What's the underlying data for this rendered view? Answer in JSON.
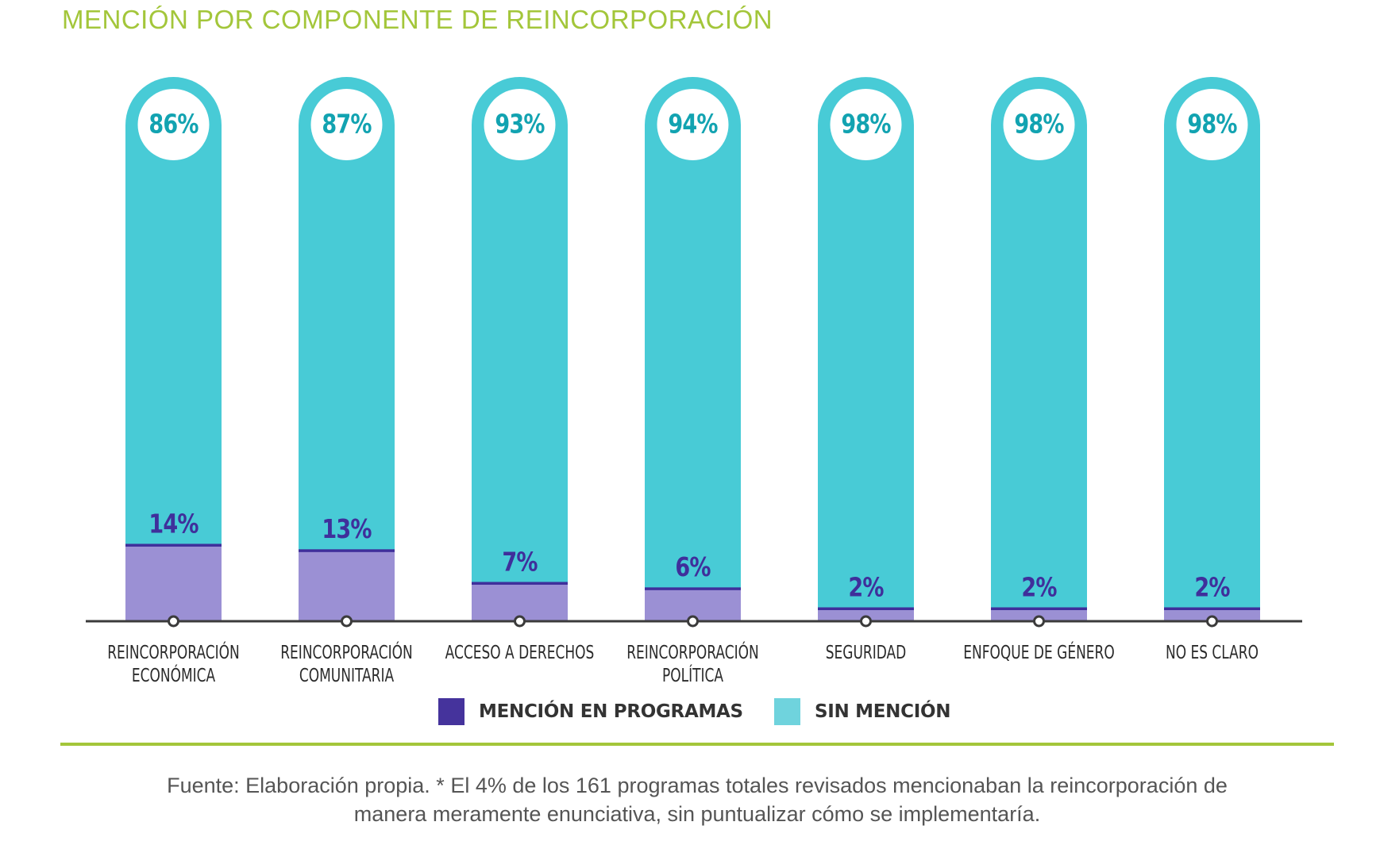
{
  "title": "MENCIÓN POR COMPONENTE DE REINCORPORACIÓN",
  "colors": {
    "mention_fill": "#9b90d4",
    "mention_line": "#3f2f9b",
    "mention_legend": "#45339c",
    "no_mention_fill": "#48cbd6",
    "no_mention_legend": "#6fd3dd",
    "top_label_text": "#12a3b1",
    "axis": "#3b3b3b",
    "title": "#a3c63a"
  },
  "legend": [
    {
      "key": "mention",
      "label": "MENCIÓN EN PROGRAMAS"
    },
    {
      "key": "no_mention",
      "label": "SIN MENCIÓN"
    }
  ],
  "footer": {
    "line1": "Fuente: Elaboración propia. * El 4% de los 161 programas totales revisados mencionaban la reincorporación de",
    "line2": "manera meramente enunciativa, sin puntualizar cómo se implementaría."
  },
  "chart_data": {
    "type": "bar",
    "stacked": true,
    "title": "MENCIÓN POR COMPONENTE DE REINCORPORACIÓN",
    "xlabel": "",
    "ylabel": "",
    "ylim": [
      0,
      100
    ],
    "unit": "%",
    "grid": false,
    "legend_position": "bottom-center",
    "categories": [
      [
        "REINCORPORACIÓN",
        "ECONÓMICA"
      ],
      [
        "REINCORPORACIÓN",
        "COMUNITARIA"
      ],
      [
        "ACCESO A DERECHOS"
      ],
      [
        "REINCORPORACIÓN",
        "POLÍTICA"
      ],
      [
        "SEGURIDAD"
      ],
      [
        "ENFOQUE DE GÉNERO"
      ],
      [
        "NO ES CLARO"
      ]
    ],
    "series": [
      {
        "name": "MENCIÓN EN PROGRAMAS",
        "values": [
          14,
          13,
          7,
          6,
          2,
          2,
          2
        ]
      },
      {
        "name": "SIN MENCIÓN",
        "values": [
          86,
          87,
          93,
          94,
          98,
          98,
          98
        ]
      }
    ],
    "data_labels": {
      "mention": [
        "14%",
        "13%",
        "7%",
        "6%",
        "2%",
        "2%",
        "2%"
      ],
      "no_mention": [
        "86%",
        "87%",
        "93%",
        "94%",
        "98%",
        "98%",
        "98%"
      ]
    }
  }
}
